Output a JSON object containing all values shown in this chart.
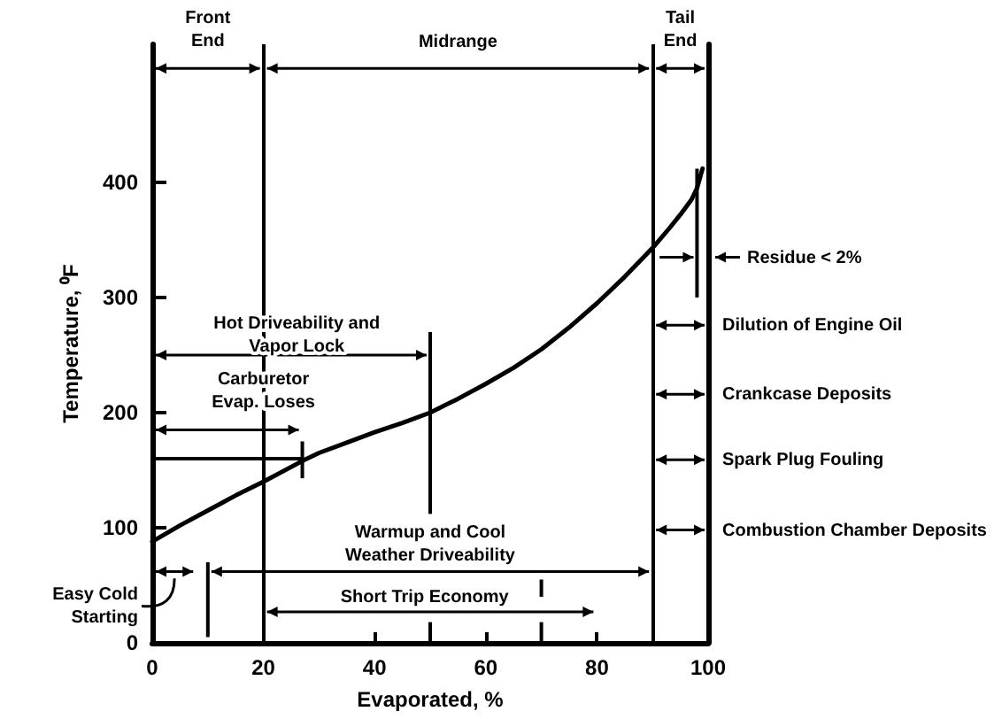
{
  "chart_data": {
    "type": "line",
    "xlabel": "Evaporated, %",
    "ylabel": "Temperature, ⁰F",
    "x": [
      0,
      5,
      10,
      15,
      20,
      27,
      30,
      35,
      40,
      45,
      50,
      55,
      60,
      65,
      70,
      75,
      80,
      85,
      90,
      93,
      95,
      97,
      98,
      99
    ],
    "series": [
      {
        "color": "#000000",
        "values": [
          88,
          102,
          115,
          128,
          140,
          158,
          165,
          174,
          183,
          191,
          200,
          212,
          225,
          239,
          255,
          274,
          295,
          318,
          343,
          360,
          372,
          385,
          395,
          412
        ]
      }
    ],
    "xlim": [
      0,
      100
    ],
    "xticks": [
      0,
      20,
      40,
      60,
      80,
      100
    ],
    "ylim": [
      0,
      520
    ],
    "yticks": [
      0,
      100,
      200,
      300,
      400
    ],
    "grid": false,
    "marker": "none",
    "line_style": "solid",
    "ref_lines": [
      {
        "axis": "x",
        "value": 20,
        "color": "#000000"
      },
      {
        "axis": "x",
        "value": 90,
        "color": "#000000"
      }
    ],
    "annotations": [
      "Front\nEnd",
      "Midrange",
      "Tail\nEnd",
      "Hot Driveability and\nVapor Lock",
      "Carburetor\nEvap. Loses",
      "Warmup and Cool\nWeather Driveability",
      "Short Trip Economy",
      "Easy Cold\nStarting",
      "Residue < 2%",
      "Dilution of Engine Oil",
      "Crankcase Deposits",
      "Spark Plug Fouling",
      "Combustion Chamber Deposits"
    ]
  }
}
